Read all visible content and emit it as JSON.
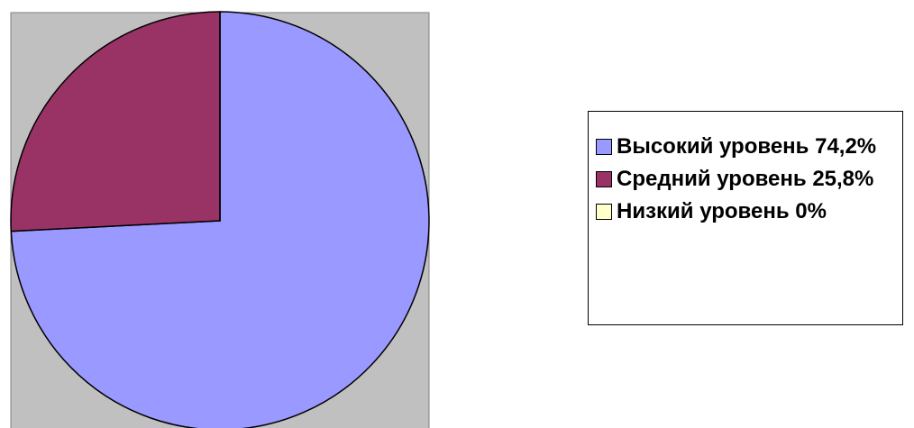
{
  "chart_data": {
    "type": "pie",
    "categories": [
      "Высокий уровень",
      "Средний уровень",
      "Низкий уровень"
    ],
    "values": [
      74.2,
      25.8,
      0
    ],
    "value_labels": [
      "74,2%",
      "25,8%",
      "0%"
    ],
    "colors": [
      "#9999ff",
      "#993366",
      "#ffffcc"
    ],
    "legend": "right"
  }
}
